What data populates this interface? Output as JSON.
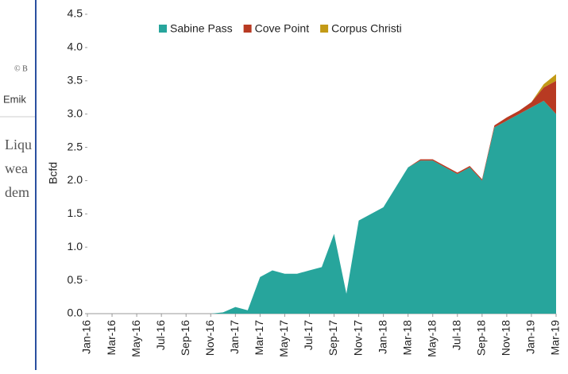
{
  "background_text": [
    "© B",
    "Emik",
    "Liqu",
    "wea",
    "dem"
  ],
  "chart_data": {
    "type": "stacked_area",
    "y_label": "Bcfd",
    "categories": [
      "Jan-16",
      null,
      "Mar-16",
      null,
      "May-16",
      null,
      "Jul-16",
      null,
      "Sep-16",
      null,
      "Nov-16",
      null,
      "Jan-17",
      null,
      "Mar-17",
      null,
      "May-17",
      null,
      "Jul-17",
      null,
      "Sep-17",
      null,
      "Nov-17",
      null,
      "Jan-18",
      null,
      "Mar-18",
      null,
      "May-18",
      null,
      "Jul-18",
      null,
      "Sep-18",
      null,
      "Nov-18",
      null,
      "Jan-19",
      null,
      "Mar-19"
    ],
    "series": [
      {
        "name": "Sabine Pass",
        "color": "#27a59c",
        "values": [
          0,
          0,
          0,
          0,
          0,
          0,
          0,
          0,
          0,
          0,
          0,
          0.02,
          0.1,
          0.05,
          0.55,
          0.65,
          0.6,
          0.6,
          0.65,
          0.7,
          1.2,
          0.3,
          1.4,
          1.5,
          1.6,
          1.9,
          2.2,
          2.3,
          2.3,
          2.2,
          2.1,
          2.2,
          2.0,
          2.8,
          2.9,
          3.0,
          3.1,
          3.2,
          3.0
        ]
      },
      {
        "name": "Cove Point",
        "color": "#b83a22",
        "values": [
          0,
          0,
          0,
          0,
          0,
          0,
          0,
          0,
          0,
          0,
          0,
          0,
          0,
          0,
          0,
          0,
          0,
          0,
          0,
          0,
          0,
          0,
          0,
          0,
          0,
          0,
          0,
          0.02,
          0.02,
          0.02,
          0.02,
          0.02,
          0.02,
          0.03,
          0.05,
          0.05,
          0.08,
          0.2,
          0.5
        ]
      },
      {
        "name": "Corpus Christi",
        "color": "#c39a16",
        "values": [
          0,
          0,
          0,
          0,
          0,
          0,
          0,
          0,
          0,
          0,
          0,
          0,
          0,
          0,
          0,
          0,
          0,
          0,
          0,
          0,
          0,
          0,
          0,
          0,
          0,
          0,
          0,
          0,
          0,
          0,
          0,
          0,
          0,
          0,
          0,
          0,
          0,
          0.05,
          0.1
        ]
      }
    ],
    "ylim": [
      0,
      4.5
    ],
    "yticks": [
      {
        "value": 0,
        "label": "0.0"
      },
      0.5,
      {
        "value": 1,
        "label": "1.0"
      },
      1.5,
      {
        "value": 2,
        "label": "2.0"
      },
      2.5,
      {
        "value": 3,
        "label": "3.0"
      },
      3.5,
      {
        "value": 4,
        "label": "4.0"
      },
      4.5
    ],
    "legend": "top"
  }
}
